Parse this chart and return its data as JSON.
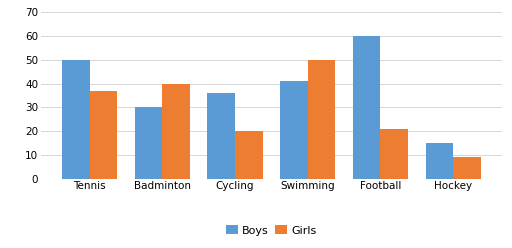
{
  "categories": [
    "Tennis",
    "Badminton",
    "Cycling",
    "Swimming",
    "Football",
    "Hockey"
  ],
  "boys": [
    50,
    30,
    36,
    41,
    60,
    15
  ],
  "girls": [
    37,
    40,
    20,
    50,
    21,
    9
  ],
  "boys_color": "#5B9BD5",
  "girls_color": "#ED7D31",
  "ylim": [
    0,
    70
  ],
  "yticks": [
    0,
    10,
    20,
    30,
    40,
    50,
    60,
    70
  ],
  "legend_labels": [
    "Boys",
    "Girls"
  ],
  "bar_width": 0.38,
  "background_color": "#ffffff",
  "grid_color": "#d0d0d0",
  "tick_fontsize": 7.5,
  "legend_fontsize": 8
}
